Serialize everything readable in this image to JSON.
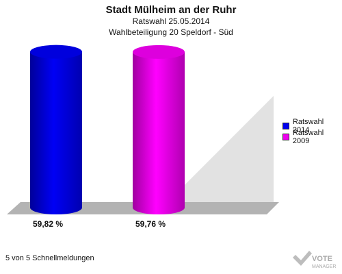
{
  "header": {
    "title": "Stadt Mülheim an der Ruhr",
    "subtitle": "Ratswahl 25.05.2014",
    "detail": "Wahlbeteiligung 20 Speldorf - Süd"
  },
  "chart_data": {
    "type": "bar",
    "categories": [
      "Ratswahl 2014",
      "Ratswahl 2009"
    ],
    "values": [
      59.82,
      59.76
    ],
    "value_labels": [
      "59,82 %",
      "59,76 %"
    ],
    "colors": [
      "#0000ee",
      "#ee00ee"
    ],
    "ylim": [
      0,
      60
    ],
    "legend": {
      "position": "right",
      "items": [
        {
          "label": "Ratswahl 2014",
          "color": "#0000ee"
        },
        {
          "label": "Ratswahl 2009",
          "color": "#ee00ee"
        }
      ]
    },
    "grid": false
  },
  "footer": {
    "note": "5 von 5 Schnellmeldungen"
  },
  "logo": {
    "text_line1": "VOTE",
    "text_line2": "MANAGER"
  }
}
